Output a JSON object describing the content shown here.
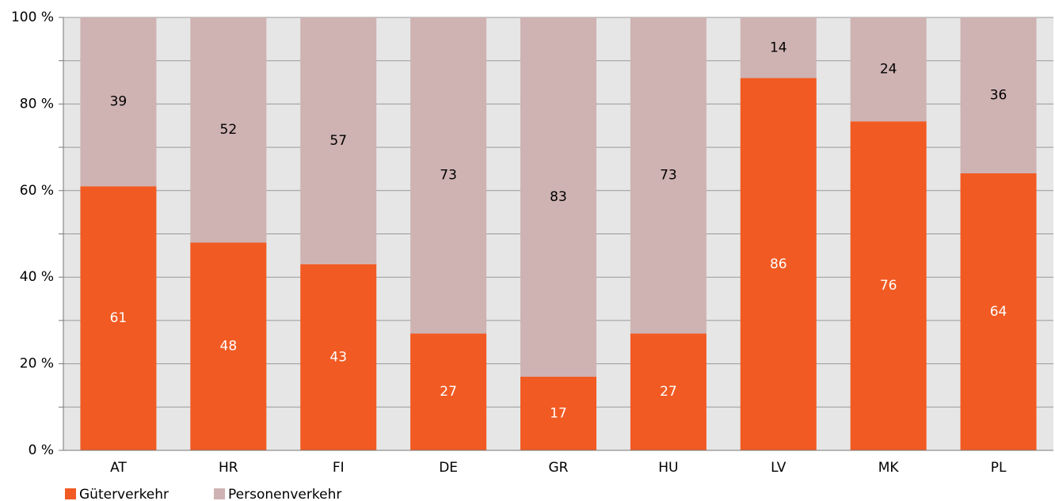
{
  "chart_data": {
    "type": "stacked_bar",
    "categories": [
      "AT",
      "HR",
      "FI",
      "DE",
      "GR",
      "HU",
      "LV",
      "MK",
      "PL"
    ],
    "series": [
      {
        "name": "Güterverkehr",
        "color": "#f15a22",
        "values": [
          61,
          48,
          43,
          27,
          17,
          27,
          86,
          76,
          64
        ]
      },
      {
        "name": "Personenverkehr",
        "color": "#cfb2b2",
        "values": [
          39,
          52,
          57,
          73,
          83,
          73,
          14,
          24,
          36
        ]
      }
    ],
    "ylim": [
      0,
      100
    ],
    "yticks": [
      {
        "value": 0,
        "label": "0 %"
      },
      {
        "value": 20,
        "label": "20 %"
      },
      {
        "value": 40,
        "label": "40 %"
      },
      {
        "value": 60,
        "label": "60 %"
      },
      {
        "value": 80,
        "label": "80 %"
      },
      {
        "value": 100,
        "label": "100 %"
      }
    ],
    "yminorticks": [
      10,
      30,
      50,
      70,
      90
    ],
    "grid": true,
    "legend": "bottom-left"
  }
}
